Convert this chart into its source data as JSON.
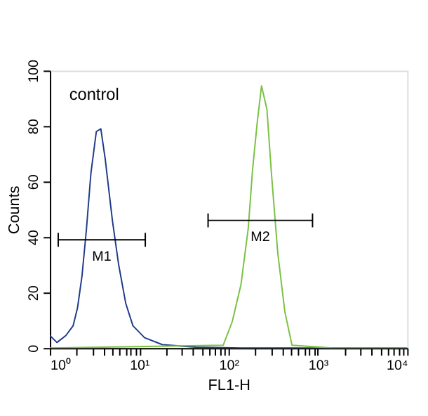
{
  "chart_data": {
    "type": "line",
    "xlabel": "FL1-H",
    "ylabel": "Counts",
    "log": "x",
    "grid": false,
    "marker": "none",
    "line_style": "solid",
    "annotations": [
      "control"
    ],
    "xlim": [
      1,
      10000
    ],
    "xticks": [
      {
        "value": 1,
        "label": "10⁰"
      },
      {
        "value": 2,
        "label": null
      },
      {
        "value": 3,
        "label": null
      },
      {
        "value": 4,
        "label": null
      },
      {
        "value": 5,
        "label": null
      },
      {
        "value": 6,
        "label": null
      },
      {
        "value": 7,
        "label": null
      },
      {
        "value": 8,
        "label": null
      },
      {
        "value": 9,
        "label": null
      },
      {
        "value": 10,
        "label": "10¹"
      },
      {
        "value": 20,
        "label": null
      },
      {
        "value": 30,
        "label": null
      },
      {
        "value": 40,
        "label": null
      },
      {
        "value": 50,
        "label": null
      },
      {
        "value": 60,
        "label": null
      },
      {
        "value": 70,
        "label": null
      },
      {
        "value": 80,
        "label": null
      },
      {
        "value": 90,
        "label": null
      },
      {
        "value": 100,
        "label": "10²"
      },
      {
        "value": 200,
        "label": null
      },
      {
        "value": 300,
        "label": null
      },
      {
        "value": 400,
        "label": null
      },
      {
        "value": 500,
        "label": null
      },
      {
        "value": 600,
        "label": null
      },
      {
        "value": 700,
        "label": null
      },
      {
        "value": 800,
        "label": null
      },
      {
        "value": 900,
        "label": null
      },
      {
        "value": 1000,
        "label": "10³"
      },
      {
        "value": 2000,
        "label": null
      },
      {
        "value": 3000,
        "label": null
      },
      {
        "value": 4000,
        "label": null
      },
      {
        "value": 5000,
        "label": null
      },
      {
        "value": 6000,
        "label": null
      },
      {
        "value": 7000,
        "label": null
      },
      {
        "value": 8000,
        "label": null
      },
      {
        "value": 9000,
        "label": null
      },
      {
        "value": 10000,
        "label": "10⁴"
      }
    ],
    "ylim": [
      0,
      100
    ],
    "yticks": [
      0,
      20,
      40,
      60,
      80,
      100
    ],
    "series": [
      {
        "color": "#1f3c88",
        "x": [
          1,
          1.2,
          1.51,
          1.82,
          2.04,
          2.29,
          2.57,
          2.88,
          3.31,
          3.72,
          4.17,
          5.01,
          5.89,
          7.08,
          8.51,
          11.5,
          18.2,
          42.7,
          138,
          10000
        ],
        "values": [
          4.5,
          2,
          4.5,
          8,
          14.5,
          26,
          43,
          63,
          78,
          79,
          68,
          46,
          30,
          16,
          8,
          3.7,
          1.2,
          0.3,
          0,
          0
        ]
      },
      {
        "color": "#7ac143",
        "x": [
          1,
          87.1,
          110,
          138,
          166,
          186,
          209,
          234,
          269,
          302,
          355,
          427,
          513,
          1479,
          10000
        ],
        "values": [
          0,
          1,
          9.5,
          23,
          43,
          64.5,
          81,
          94.5,
          86,
          63,
          34.5,
          13,
          1,
          0,
          0
        ]
      },
      {
        "name": "M1",
        "color": "#000000",
        "x": [
          1.24,
          11.7
        ],
        "values": [
          39,
          39
        ],
        "errors": [
          2.5,
          2.5
        ]
      },
      {
        "name": "M2",
        "color": "#000000",
        "x": [
          59,
          871
        ],
        "values": [
          46,
          46
        ],
        "errors": [
          2.5,
          2.5
        ]
      }
    ]
  }
}
